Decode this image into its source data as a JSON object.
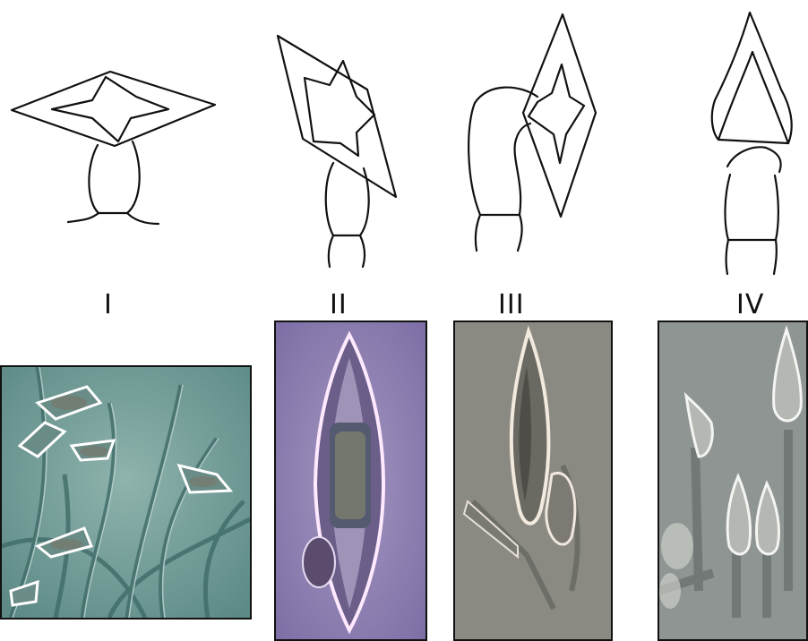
{
  "figure": {
    "labels": [
      "I",
      "II",
      "III",
      "IV"
    ]
  }
}
